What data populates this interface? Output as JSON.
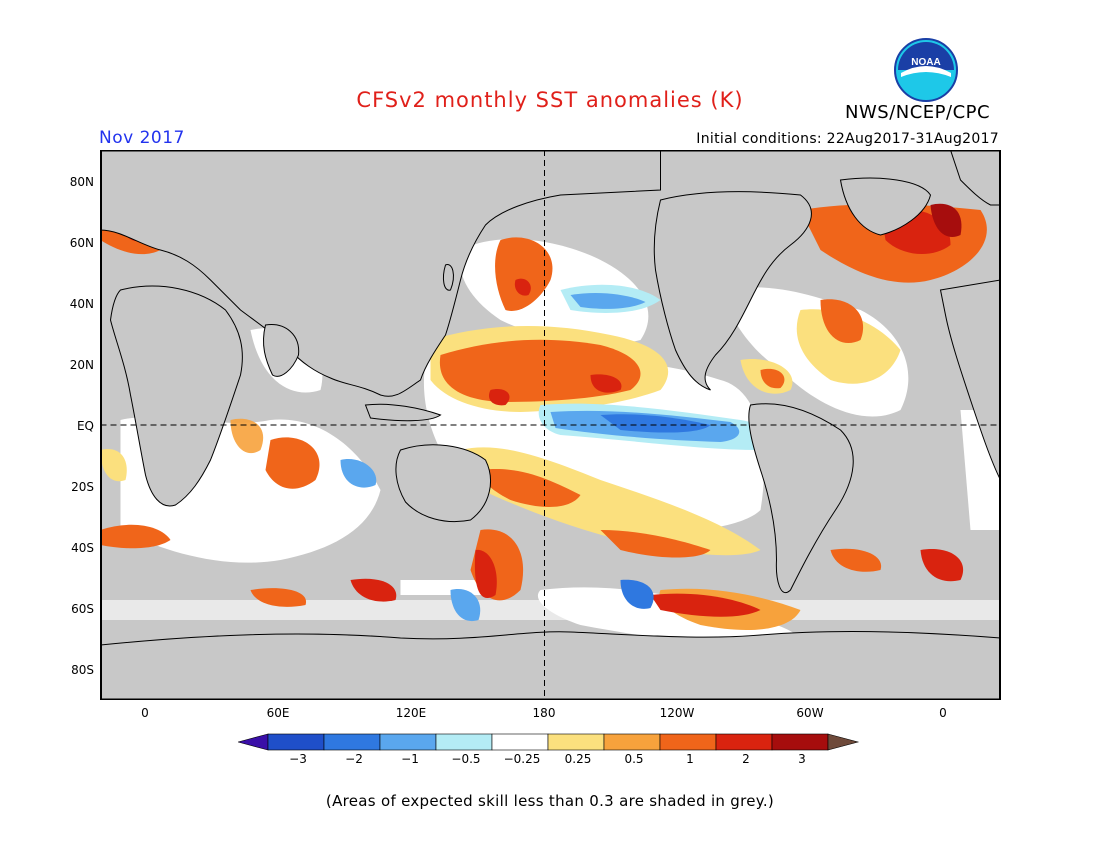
{
  "title": "CFSv2 monthly SST anomalies (K)",
  "agency": "NWS/NCEP/CPC",
  "logo_text": "NOAA",
  "valid_month": "Nov 2017",
  "initial_conditions": "Initial conditions: 22Aug2017-31Aug2017",
  "lat_labels": [
    "80N",
    "60N",
    "40N",
    "20N",
    "EQ",
    "20S",
    "40S",
    "60S",
    "80S"
  ],
  "lon_labels": [
    "0",
    "60E",
    "120E",
    "180",
    "120W",
    "60W",
    "0"
  ],
  "colorbar": {
    "labels": [
      "−3",
      "−2",
      "−1",
      "−0.5",
      "−0.25",
      "0.25",
      "0.5",
      "1",
      "2",
      "3"
    ],
    "colors": [
      "#3a0fa8",
      "#1f4fc9",
      "#2f78e0",
      "#5aa7ee",
      "#b4ecf5",
      "#ffffff",
      "#fbe07e",
      "#f7a23c",
      "#f0651a",
      "#d9230f",
      "#a60d0d",
      "#6e4a3a"
    ]
  },
  "note": "(Areas of expected skill less than 0.3 are shaded in grey.)",
  "map_colors": {
    "land": "#c8c8c8",
    "grey_skill": "#c8c8c8",
    "ocean_neutral": "#ffffff"
  }
}
